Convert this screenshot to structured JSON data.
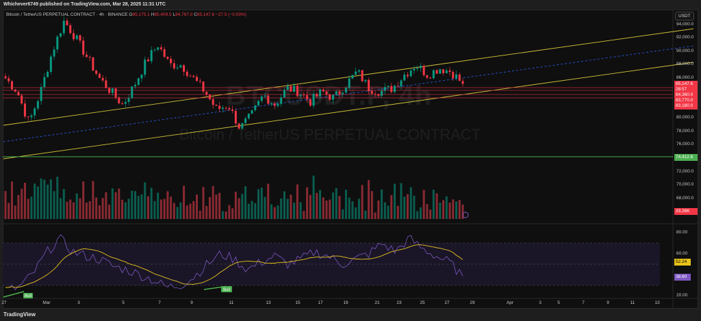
{
  "header": {
    "published": "Whichever6749 published on TradingView.com, Mar 28, 2025 11:31 UTC"
  },
  "legend": {
    "symbol": "Bitcoin / TetherUS PERPETUAL CONTRACT · 4h · BINANCE",
    "o_label": "O",
    "o": "85,175.1",
    "h_label": "H",
    "h": "85,409.5",
    "l_label": "L",
    "l": "84,767.0",
    "c_label": "C",
    "c": "85,147.6",
    "chg": "−27.5 (−0.03%)"
  },
  "watermark": {
    "ticker": "BTCUSDT.P, 4h",
    "name": "Bitcoin / TetherUS PERPETUAL CONTRACT"
  },
  "axis": {
    "currency": "USDT",
    "price_ticks": [
      "94,000.0",
      "92,000.0",
      "90,000.0",
      "88,000.0",
      "86,000.0",
      "80,000.0",
      "78,000.0",
      "76,000.0",
      "72,000.0",
      "70,000.0",
      "68,000.0"
    ],
    "rsi_ticks": [
      "80.00",
      "60.00",
      "20.00"
    ]
  },
  "price_tags": {
    "last": "85,147.6",
    "countdown": "28:57",
    "l1": "84,360.0",
    "l2": "83,770.0",
    "l3": "83,180.0",
    "support": "74,412.8",
    "volume": "33.26K",
    "rsi_ma": "52.24",
    "rsi": "38.60"
  },
  "time_ticks": [
    "27",
    "Mar",
    "3",
    "5",
    "7",
    "9",
    "11",
    "13",
    "15",
    "17",
    "19",
    "21",
    "23",
    "25",
    "27",
    "29",
    "Apr",
    "3",
    "5",
    "7",
    "9",
    "11",
    "13"
  ],
  "signals": {
    "bull1": "Bull",
    "bull2": "Bull"
  },
  "footer": {
    "brand": "TradingView"
  },
  "colors": {
    "up": "#089981",
    "down": "#f23645",
    "channel": "#d4c43a",
    "mid": "#2962ff",
    "support": "#4caf50",
    "rsi": "#7e57c2",
    "rsi_ma": "#e8c31a"
  },
  "chart_data": {
    "type": "candlestick",
    "title": "Bitcoin / TetherUS PERPETUAL CONTRACT · 4h · BINANCE",
    "ylim": [
      70000,
      95000
    ],
    "x_range": [
      "Feb 27",
      "Mar 28"
    ],
    "close_keypoints": [
      86000,
      84000,
      79300,
      84000,
      90000,
      94600,
      92000,
      89000,
      86000,
      84000,
      82000,
      85000,
      88500,
      91000,
      88000,
      88000,
      86000,
      84000,
      81300,
      82000,
      78500,
      80500,
      83500,
      82000,
      84500,
      84000,
      82500,
      84000,
      83000,
      85000,
      87000,
      84500,
      84000,
      84500,
      86500,
      88000,
      86500,
      87500,
      87000,
      85147.6
    ],
    "horizontal_levels": [
      85147.6,
      84360.0,
      83770.0,
      83180.0,
      74412.8
    ],
    "rsi_keypoints": [
      25,
      28,
      40,
      60,
      75,
      62,
      58,
      55,
      48,
      45,
      40,
      35,
      28,
      30,
      38,
      50,
      60,
      55,
      45,
      52,
      58,
      50,
      55,
      62,
      58,
      50,
      55,
      60,
      70,
      62,
      75,
      65,
      58,
      52,
      38.6
    ],
    "rsi_ma_last": 52.24,
    "rsi_bands": [
      30,
      70
    ]
  }
}
